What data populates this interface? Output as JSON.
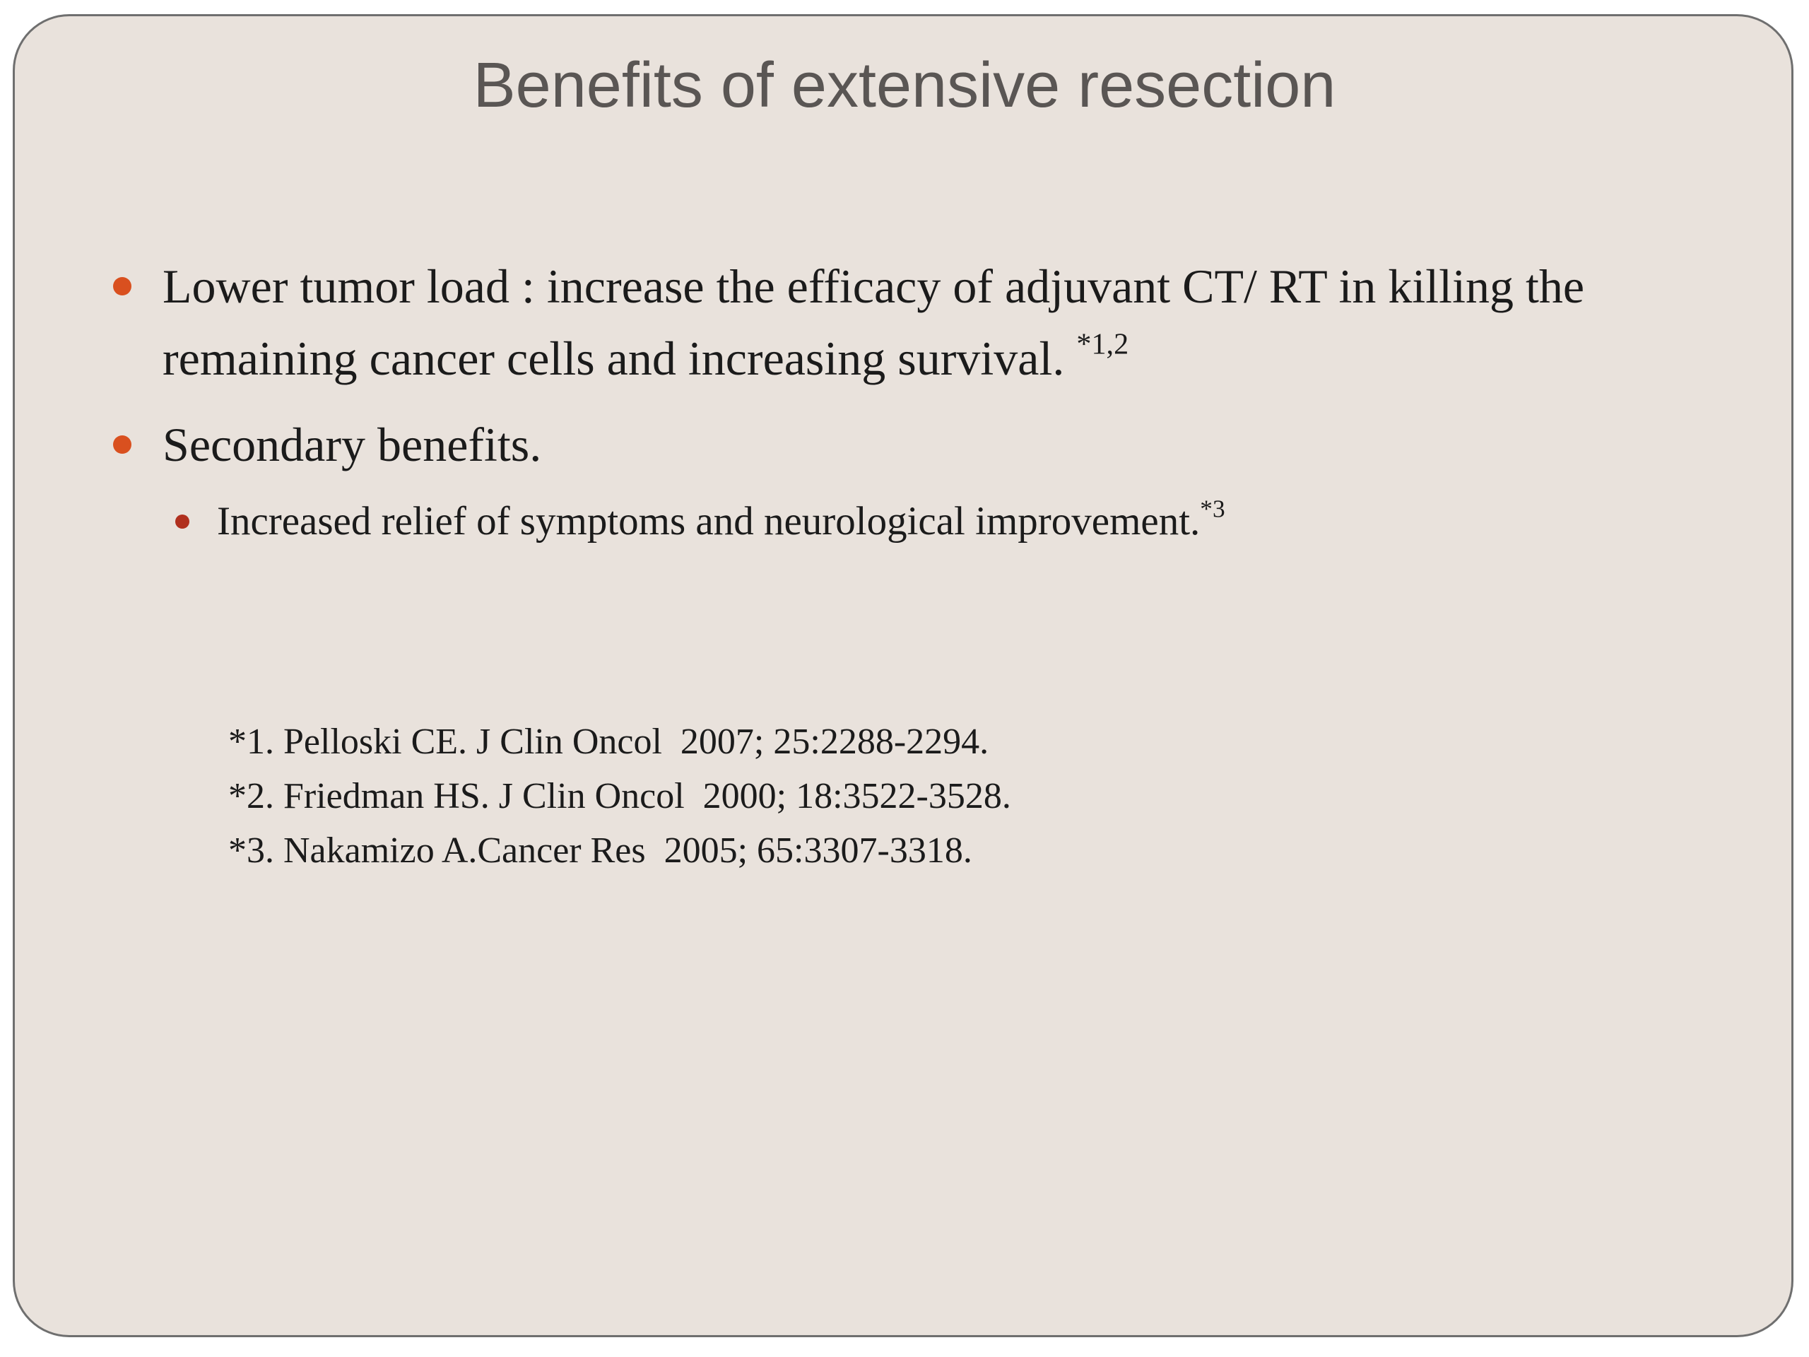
{
  "slide": {
    "title": "Benefits of extensive resection",
    "bullets": [
      {
        "text": "Lower tumor load : increase the efficacy of adjuvant CT/ RT in killing the remaining cancer cells and increasing survival.",
        "sup": "*1,2"
      },
      {
        "text": "Secondary benefits.",
        "sub_bullets": [
          {
            "text": "Increased relief of symptoms and neurological improvement.",
            "sup": "*3"
          }
        ]
      }
    ],
    "references": [
      "*1. Pelloski CE. J Clin Oncol  2007; 25:2288-2294.",
      "*2. Friedman HS. J Clin Oncol  2000; 18:3522-3528.",
      "*3. Nakamizo A.Cancer Res  2005; 65:3307-3318."
    ]
  }
}
